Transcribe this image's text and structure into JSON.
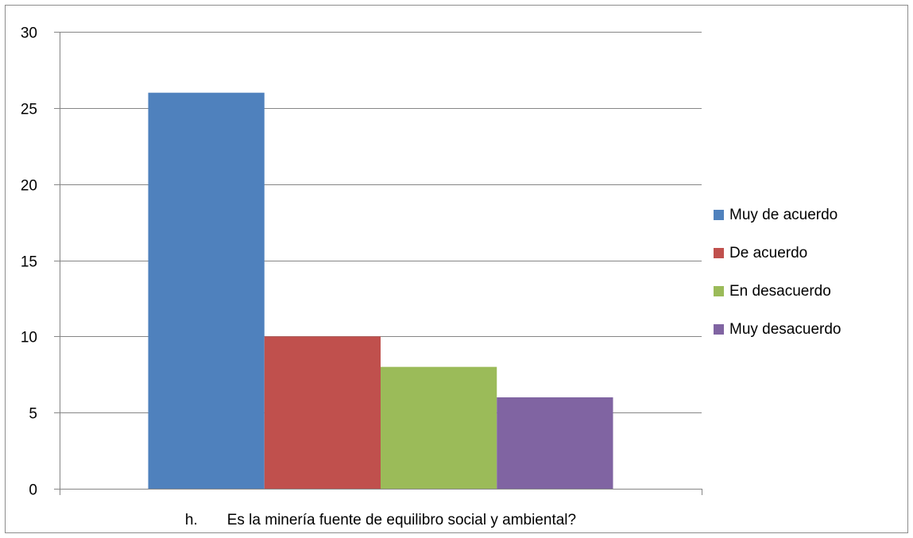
{
  "chart_data": {
    "type": "bar",
    "categories": [
      "h.       Es la minería fuente de equilibro social y ambiental?"
    ],
    "series": [
      {
        "name": "Muy de acuerdo",
        "values": [
          26
        ],
        "color": "#4F81BD"
      },
      {
        "name": "De acuerdo",
        "values": [
          10
        ],
        "color": "#C0504D"
      },
      {
        "name": "En desacuerdo",
        "values": [
          8
        ],
        "color": "#9BBB59"
      },
      {
        "name": "Muy desacuerdo",
        "values": [
          6
        ],
        "color": "#8064A2"
      }
    ],
    "ylim": [
      0,
      30
    ],
    "yticks": [
      0,
      5,
      10,
      15,
      20,
      25,
      30
    ],
    "grid": true,
    "legend_position": "right",
    "gridline_color": "#868686",
    "axis_color": "#868686"
  }
}
